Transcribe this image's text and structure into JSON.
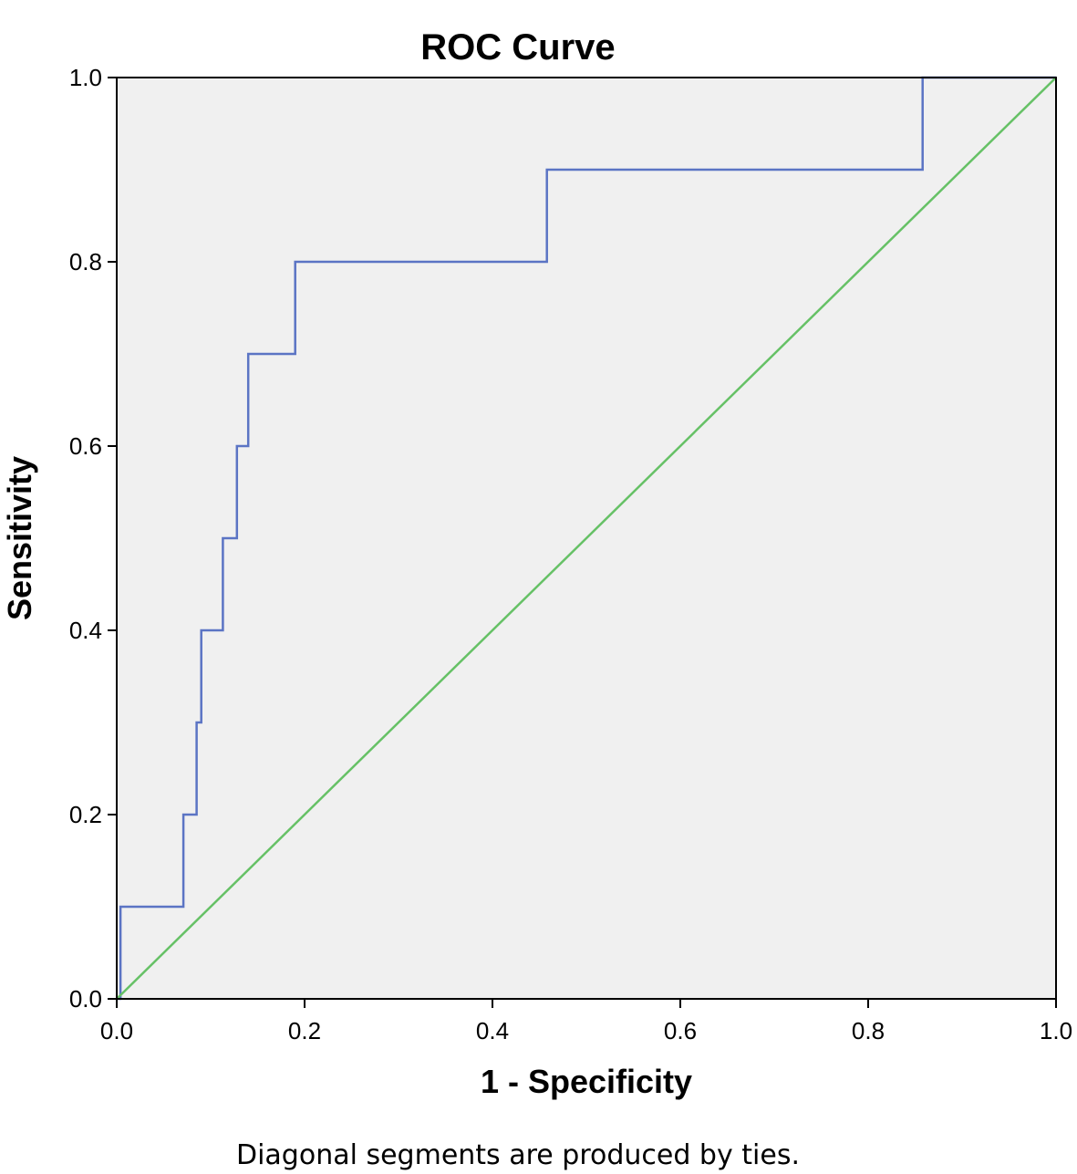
{
  "chart_data": {
    "type": "line",
    "title": "ROC Curve",
    "xlabel": "1 - Specificity",
    "ylabel": "Sensitivity",
    "footnote": "Diagonal segments are produced by ties.",
    "xlim": [
      0,
      1
    ],
    "ylim": [
      0,
      1
    ],
    "x_ticks": [
      0.0,
      0.2,
      0.4,
      0.6,
      0.8,
      1.0
    ],
    "y_ticks": [
      0.0,
      0.2,
      0.4,
      0.6,
      0.8,
      1.0
    ],
    "x_tick_labels": [
      "0.0",
      "0.2",
      "0.4",
      "0.6",
      "0.8",
      "1.0"
    ],
    "y_tick_labels": [
      "0.0",
      "0.2",
      "0.4",
      "0.6",
      "0.8",
      "1.0"
    ],
    "grid": false,
    "background_color": "#f0f0f0",
    "series": [
      {
        "color": "#5b74c4",
        "x": [
          0.0,
          0.004,
          0.004,
          0.071,
          0.071,
          0.085,
          0.085,
          0.089,
          0.089,
          0.09,
          0.09,
          0.091,
          0.091,
          0.113,
          0.113,
          0.128,
          0.128,
          0.14,
          0.14,
          0.147,
          0.147,
          0.19,
          0.19,
          0.458,
          0.458,
          0.858,
          0.858,
          1.0
        ],
        "y": [
          0.0,
          0.0,
          0.1,
          0.1,
          0.2,
          0.2,
          0.3,
          0.3,
          0.3,
          0.3,
          0.4,
          0.4,
          0.4,
          0.4,
          0.5,
          0.5,
          0.6,
          0.6,
          0.7,
          0.7,
          0.7,
          0.7,
          0.8,
          0.8,
          0.9,
          0.9,
          1.0,
          1.0
        ]
      },
      {
        "color": "#66c166",
        "x": [
          0.0,
          1.0
        ],
        "y": [
          0.0,
          1.0
        ]
      }
    ]
  }
}
